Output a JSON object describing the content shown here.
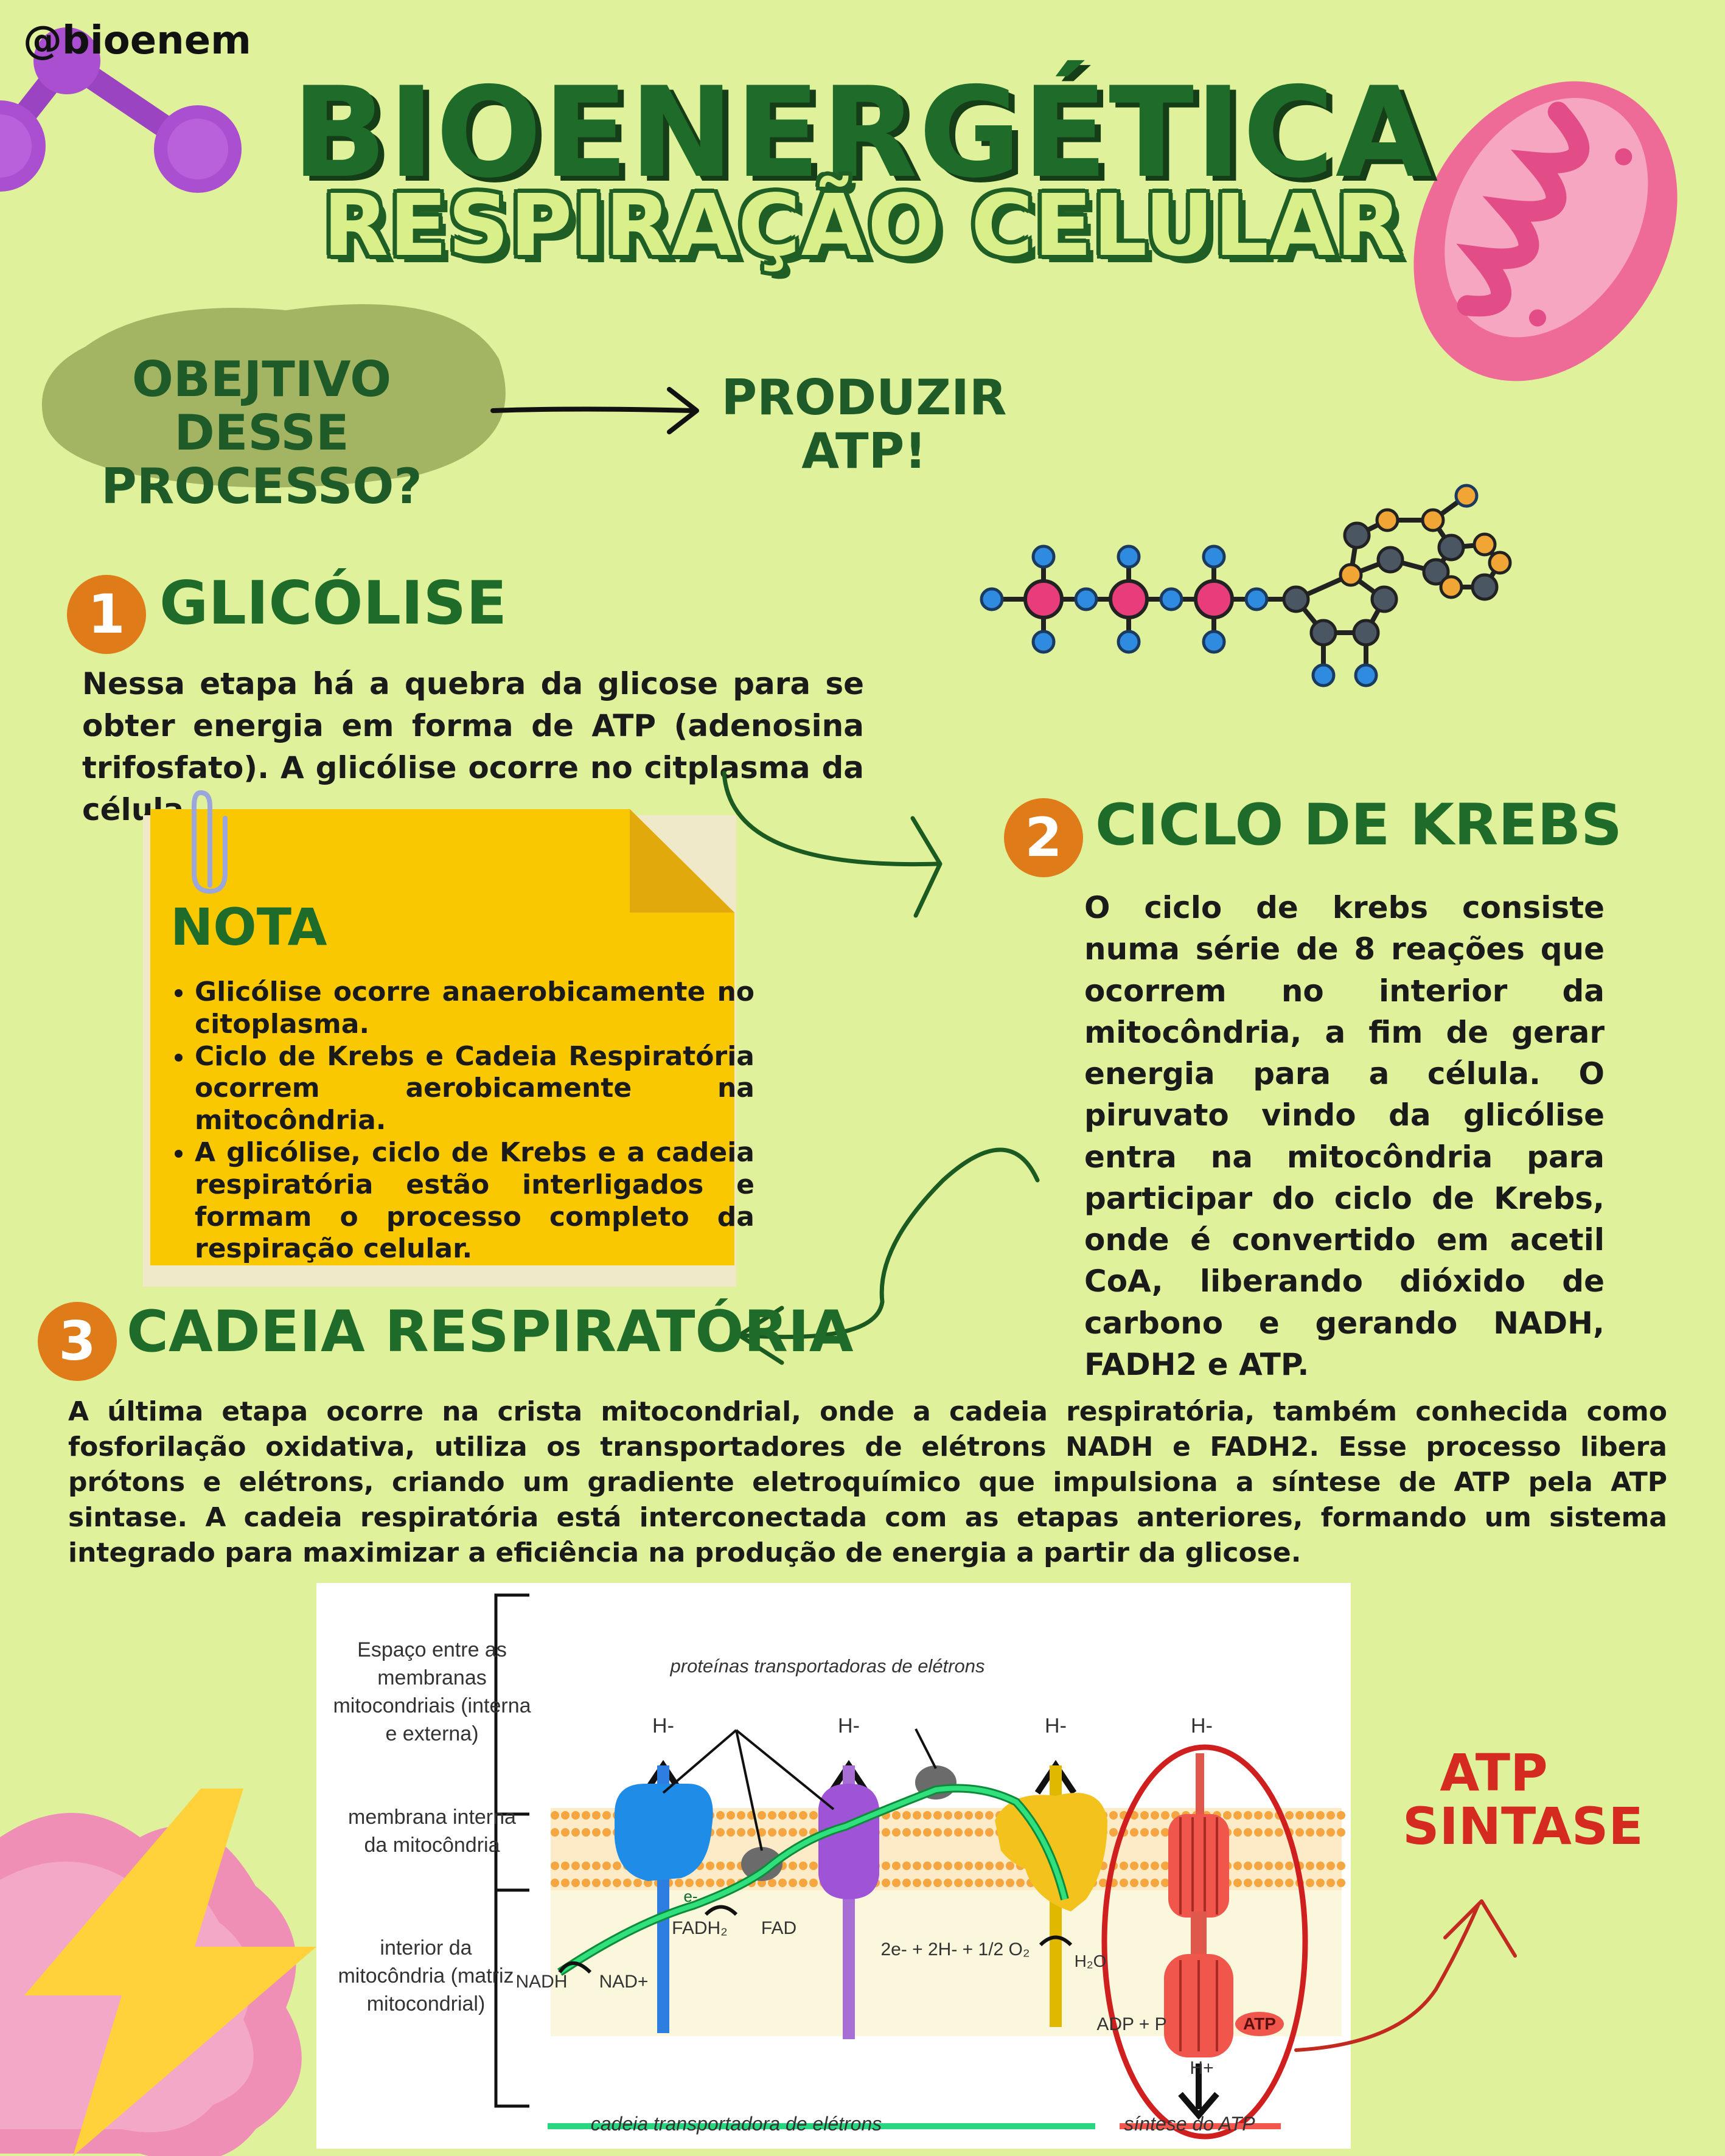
{
  "handle": "@bioenem",
  "title": "BIOENERGÉTICA",
  "subtitle": "RESPIRAÇÃO CELULAR",
  "objective": {
    "question": "OBEJTIVO DESSE PROCESSO?",
    "answer": "PRODUZIR ATP!"
  },
  "sections": [
    {
      "number": "1",
      "title": "GLICÓLISE",
      "text": "Nessa etapa há a quebra da glicose para se obter energia em forma de ATP (adenosina trifosfato). A glicólise ocorre no citplasma da célula."
    },
    {
      "number": "2",
      "title": "CICLO DE KREBS",
      "text": "O ciclo de krebs consiste numa série de 8 reações que ocorrem no interior da mitocôndria, a fim de gerar energia para a célula. O piruvato vindo da glicólise entra na mitocôndria para participar do ciclo de Krebs, onde é convertido em acetil CoA, liberando dióxido de carbono e gerando NADH, FADH2 e ATP."
    },
    {
      "number": "3",
      "title": "CADEIA RESPIRATÓRIA",
      "text": "A última etapa ocorre na crista mitocondrial, onde a cadeia respiratória, também conhecida como fosforilação oxidativa, utiliza os transportadores de elétrons NADH e FADH2. Esse processo libera prótons e elétrons, criando um gradiente eletroquímico que impulsiona a síntese de ATP pela ATP sintase. A cadeia respiratória está interconectada com as etapas anteriores, formando um sistema integrado para maximizar a eficiência na produção de energia a partir da glicose."
    }
  ],
  "note": {
    "title": "NOTA",
    "items": [
      "Glicólise ocorre anaerobicamente no citoplasma.",
      "Ciclo de Krebs e Cadeia Respiratória ocorrem aerobicamente na mitocôndria.",
      "A glicólise, ciclo de Krebs e a cadeia respiratória estão interligados e formam o processo completo da respiração celular."
    ]
  },
  "diagram": {
    "region_labels": [
      "Espaço entre as membranas mitocondriais (interna e externa)",
      "membrana interna da mitocôndria",
      "interior da mitocôndria (matriz mitocondrial)"
    ],
    "proteins_label": "proteínas transportadoras de elétrons",
    "h_labels": [
      "H-",
      "H-",
      "H-",
      "H-"
    ],
    "electron": "e-",
    "nadh": "NADH",
    "nad": "NAD+",
    "fadh2": "FADH₂",
    "fad": "FAD",
    "oxygen_reaction": "2e- + 2H- + 1/2 O₂",
    "water": "H₂O",
    "adp": "ADP + P",
    "atp": "ATP",
    "h_plus": "H+",
    "chain_label": "cadeia transportadora de elétrons",
    "synthesis_label": "síntese do ATP"
  },
  "atp_synthase_label": "ATP SINTASE",
  "colors": {
    "background": "#dff19b",
    "dark_green": "#1e6b2a",
    "orange": "#e07b1a",
    "note_yellow": "#f9c800",
    "red": "#d42a1f"
  }
}
